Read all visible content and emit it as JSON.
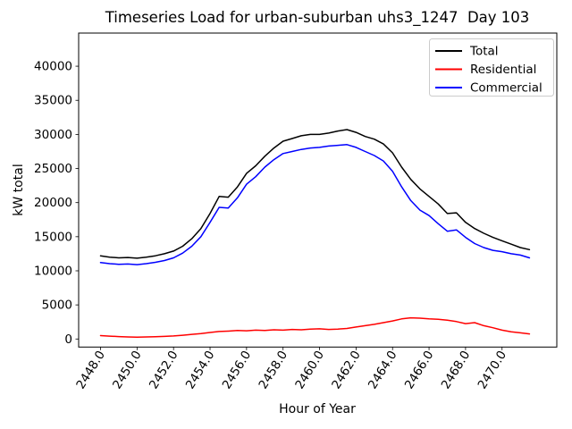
{
  "figure": {
    "background": "#ffffff",
    "frame_color": "#000000",
    "legend_edge_color": "#cccccc"
  },
  "chart_data": {
    "type": "line",
    "title": "Timeseries Load for urban-suburban uhs3_1247  Day 103",
    "xlabel": "Hour of Year",
    "ylabel": "kW total",
    "xlim": [
      2446.8,
      2473.0
    ],
    "ylim": [
      -1180,
      44860
    ],
    "grid": false,
    "legend_position": "upper right",
    "xticks": [
      2448,
      2450,
      2452,
      2454,
      2456,
      2458,
      2460,
      2462,
      2464,
      2466,
      2468,
      2470
    ],
    "xtick_labels": [
      "2448.0",
      "2450.0",
      "2452.0",
      "2454.0",
      "2456.0",
      "2458.0",
      "2460.0",
      "2462.0",
      "2464.0",
      "2466.0",
      "2468.0",
      "2470.0"
    ],
    "yticks": [
      0,
      5000,
      10000,
      15000,
      20000,
      25000,
      30000,
      35000,
      40000
    ],
    "ytick_labels": [
      "0",
      "5000",
      "10000",
      "15000",
      "20000",
      "25000",
      "30000",
      "35000",
      "40000"
    ],
    "x_start": 2448,
    "x_step": 0.5,
    "series": [
      {
        "name": "Total",
        "color": "#000000",
        "values": [
          12200,
          12000,
          11900,
          11950,
          11850,
          12000,
          12200,
          12500,
          12900,
          13600,
          14700,
          16200,
          18400,
          20900,
          20800,
          22300,
          24300,
          25400,
          26800,
          28000,
          29000,
          29400,
          29800,
          30000,
          30000,
          30200,
          30500,
          30700,
          30300,
          29700,
          29300,
          28600,
          27300,
          25200,
          23400,
          22000,
          20900,
          19800,
          18400,
          18500,
          17100,
          16200,
          15500,
          14900,
          14400,
          13900,
          13400,
          13100
        ]
      },
      {
        "name": "Residential",
        "color": "#ff0000",
        "values": [
          500,
          420,
          350,
          300,
          280,
          300,
          330,
          380,
          450,
          550,
          680,
          800,
          950,
          1100,
          1150,
          1250,
          1200,
          1300,
          1250,
          1350,
          1300,
          1400,
          1350,
          1450,
          1500,
          1400,
          1450,
          1550,
          1750,
          1950,
          2150,
          2400,
          2650,
          2950,
          3100,
          3050,
          2950,
          2900,
          2750,
          2550,
          2250,
          2400,
          1950,
          1650,
          1300,
          1050,
          900,
          750
        ]
      },
      {
        "name": "Commercial",
        "color": "#0000ff",
        "values": [
          11200,
          11050,
          10950,
          11000,
          10900,
          11050,
          11250,
          11500,
          11900,
          12600,
          13600,
          15000,
          17100,
          19300,
          19200,
          20700,
          22700,
          23800,
          25200,
          26300,
          27200,
          27500,
          27800,
          28000,
          28100,
          28300,
          28400,
          28500,
          28100,
          27500,
          26900,
          26100,
          24600,
          22300,
          20300,
          18900,
          18100,
          16900,
          15800,
          16000,
          14900,
          14000,
          13400,
          13000,
          12800,
          12500,
          12300,
          11900
        ]
      }
    ]
  }
}
